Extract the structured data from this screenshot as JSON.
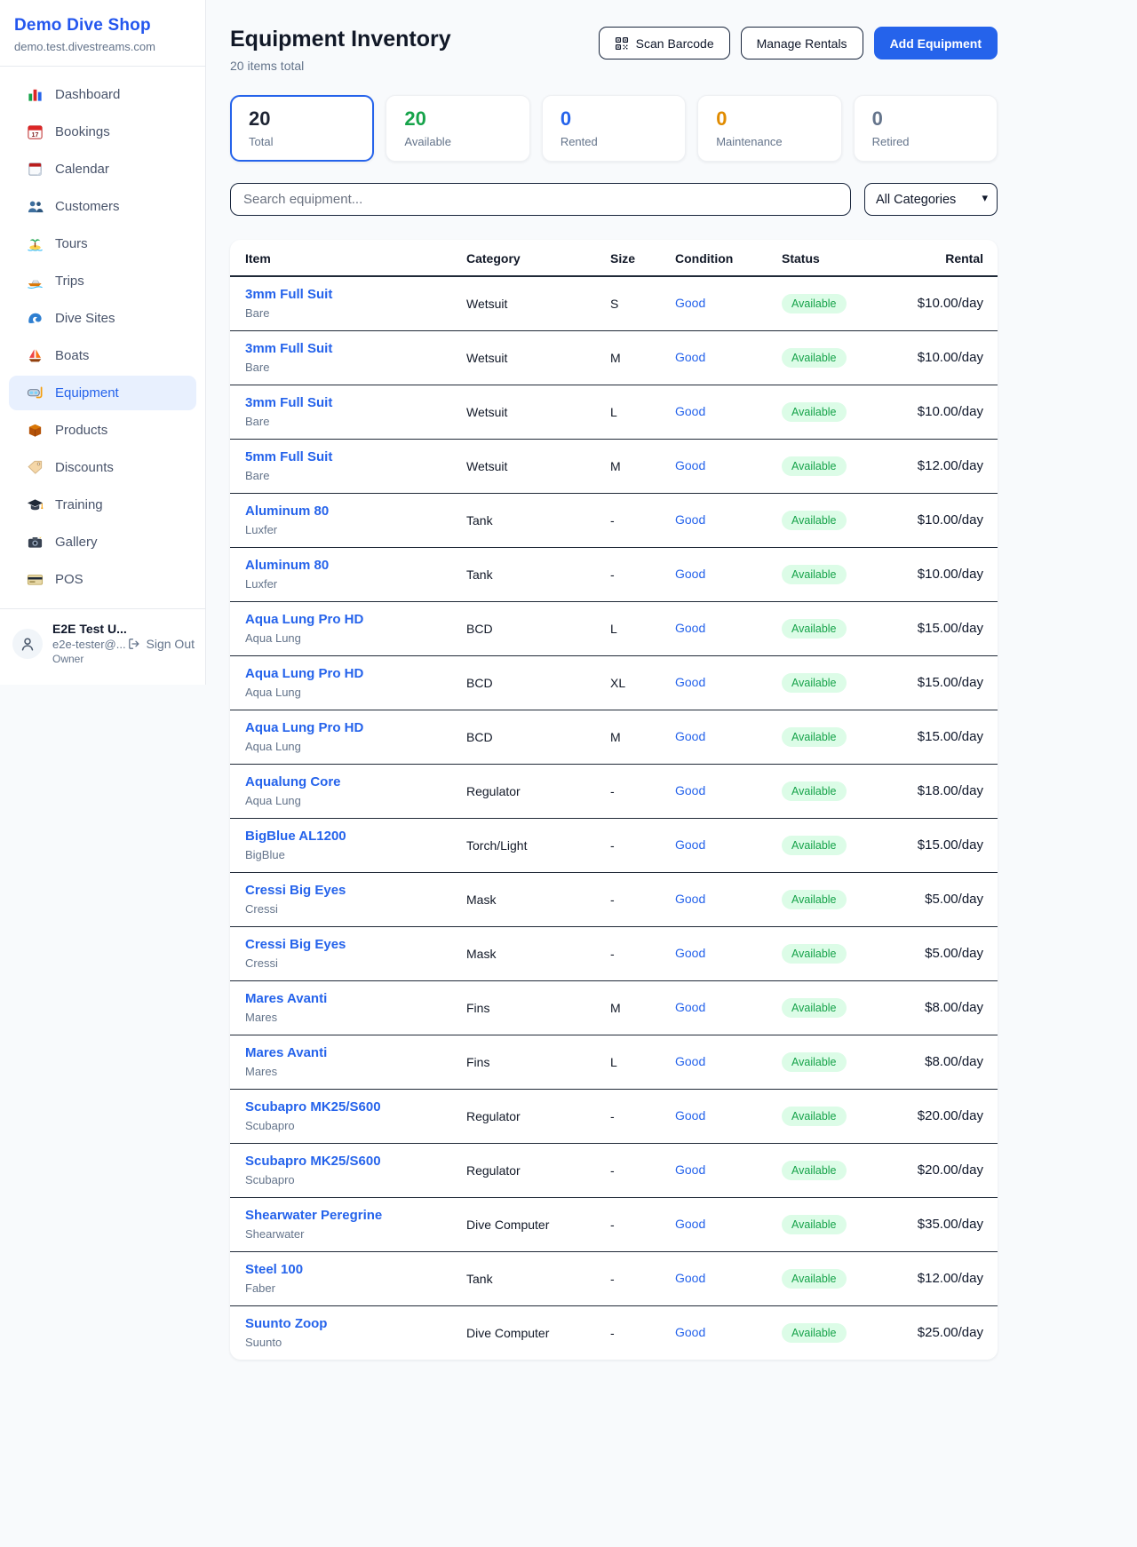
{
  "sidebar": {
    "brand": "Demo Dive Shop",
    "domain": "demo.test.divestreams.com",
    "items": [
      {
        "label": "Dashboard",
        "icon": "dashboard-chart-icon",
        "active": false
      },
      {
        "label": "Bookings",
        "icon": "bookings-calendar-icon",
        "active": false
      },
      {
        "label": "Calendar",
        "icon": "calendar-icon",
        "active": false
      },
      {
        "label": "Customers",
        "icon": "customers-icon",
        "active": false
      },
      {
        "label": "Tours",
        "icon": "tours-island-icon",
        "active": false
      },
      {
        "label": "Trips",
        "icon": "trips-boat-icon",
        "active": false
      },
      {
        "label": "Dive Sites",
        "icon": "dive-sites-wave-icon",
        "active": false
      },
      {
        "label": "Boats",
        "icon": "boats-sailboat-icon",
        "active": false
      },
      {
        "label": "Equipment",
        "icon": "equipment-dive-mask-icon",
        "active": true
      },
      {
        "label": "Products",
        "icon": "products-box-icon",
        "active": false
      },
      {
        "label": "Discounts",
        "icon": "discounts-tag-icon",
        "active": false
      },
      {
        "label": "Training",
        "icon": "training-grad-cap-icon",
        "active": false
      },
      {
        "label": "Gallery",
        "icon": "gallery-camera-icon",
        "active": false
      },
      {
        "label": "POS",
        "icon": "pos-credit-card-icon",
        "active": false
      }
    ],
    "user": {
      "name": "E2E Test U...",
      "email": "e2e-tester@...",
      "role": "Owner",
      "sign_out": "Sign Out"
    }
  },
  "header": {
    "title": "Equipment Inventory",
    "subtitle": "20 items total",
    "scan_button": "Scan Barcode",
    "manage_button": "Manage Rentals",
    "add_button": "Add Equipment"
  },
  "stats": [
    {
      "value": "20",
      "label": "Total",
      "color": "#1e2433",
      "selected": true
    },
    {
      "value": "20",
      "label": "Available",
      "color": "#16a34a",
      "selected": false
    },
    {
      "value": "0",
      "label": "Rented",
      "color": "#2563eb",
      "selected": false
    },
    {
      "value": "0",
      "label": "Maintenance",
      "color": "#e08b00",
      "selected": false
    },
    {
      "value": "0",
      "label": "Retired",
      "color": "#64748b",
      "selected": false
    }
  ],
  "filters": {
    "search_placeholder": "Search equipment...",
    "category": "All Categories"
  },
  "table": {
    "columns": [
      "Item",
      "Category",
      "Size",
      "Condition",
      "Status",
      "Rental"
    ],
    "rows": [
      {
        "name": "3mm Full Suit",
        "brand": "Bare",
        "category": "Wetsuit",
        "size": "S",
        "condition": "Good",
        "status": "Available",
        "rental": "$10.00/day"
      },
      {
        "name": "3mm Full Suit",
        "brand": "Bare",
        "category": "Wetsuit",
        "size": "M",
        "condition": "Good",
        "status": "Available",
        "rental": "$10.00/day"
      },
      {
        "name": "3mm Full Suit",
        "brand": "Bare",
        "category": "Wetsuit",
        "size": "L",
        "condition": "Good",
        "status": "Available",
        "rental": "$10.00/day"
      },
      {
        "name": "5mm Full Suit",
        "brand": "Bare",
        "category": "Wetsuit",
        "size": "M",
        "condition": "Good",
        "status": "Available",
        "rental": "$12.00/day"
      },
      {
        "name": "Aluminum 80",
        "brand": "Luxfer",
        "category": "Tank",
        "size": "-",
        "condition": "Good",
        "status": "Available",
        "rental": "$10.00/day"
      },
      {
        "name": "Aluminum 80",
        "brand": "Luxfer",
        "category": "Tank",
        "size": "-",
        "condition": "Good",
        "status": "Available",
        "rental": "$10.00/day"
      },
      {
        "name": "Aqua Lung Pro HD",
        "brand": "Aqua Lung",
        "category": "BCD",
        "size": "L",
        "condition": "Good",
        "status": "Available",
        "rental": "$15.00/day"
      },
      {
        "name": "Aqua Lung Pro HD",
        "brand": "Aqua Lung",
        "category": "BCD",
        "size": "XL",
        "condition": "Good",
        "status": "Available",
        "rental": "$15.00/day"
      },
      {
        "name": "Aqua Lung Pro HD",
        "brand": "Aqua Lung",
        "category": "BCD",
        "size": "M",
        "condition": "Good",
        "status": "Available",
        "rental": "$15.00/day"
      },
      {
        "name": "Aqualung Core",
        "brand": "Aqua Lung",
        "category": "Regulator",
        "size": "-",
        "condition": "Good",
        "status": "Available",
        "rental": "$18.00/day"
      },
      {
        "name": "BigBlue AL1200",
        "brand": "BigBlue",
        "category": "Torch/Light",
        "size": "-",
        "condition": "Good",
        "status": "Available",
        "rental": "$15.00/day"
      },
      {
        "name": "Cressi Big Eyes",
        "brand": "Cressi",
        "category": "Mask",
        "size": "-",
        "condition": "Good",
        "status": "Available",
        "rental": "$5.00/day"
      },
      {
        "name": "Cressi Big Eyes",
        "brand": "Cressi",
        "category": "Mask",
        "size": "-",
        "condition": "Good",
        "status": "Available",
        "rental": "$5.00/day"
      },
      {
        "name": "Mares Avanti",
        "brand": "Mares",
        "category": "Fins",
        "size": "M",
        "condition": "Good",
        "status": "Available",
        "rental": "$8.00/day"
      },
      {
        "name": "Mares Avanti",
        "brand": "Mares",
        "category": "Fins",
        "size": "L",
        "condition": "Good",
        "status": "Available",
        "rental": "$8.00/day"
      },
      {
        "name": "Scubapro MK25/S600",
        "brand": "Scubapro",
        "category": "Regulator",
        "size": "-",
        "condition": "Good",
        "status": "Available",
        "rental": "$20.00/day"
      },
      {
        "name": "Scubapro MK25/S600",
        "brand": "Scubapro",
        "category": "Regulator",
        "size": "-",
        "condition": "Good",
        "status": "Available",
        "rental": "$20.00/day"
      },
      {
        "name": "Shearwater Peregrine",
        "brand": "Shearwater",
        "category": "Dive Computer",
        "size": "-",
        "condition": "Good",
        "status": "Available",
        "rental": "$35.00/day"
      },
      {
        "name": "Steel 100",
        "brand": "Faber",
        "category": "Tank",
        "size": "-",
        "condition": "Good",
        "status": "Available",
        "rental": "$12.00/day"
      },
      {
        "name": "Suunto Zoop",
        "brand": "Suunto",
        "category": "Dive Computer",
        "size": "-",
        "condition": "Good",
        "status": "Available",
        "rental": "$25.00/day"
      }
    ]
  },
  "colors": {
    "brand_blue": "#2563eb",
    "active_nav_bg": "#e8f0fe",
    "badge_bg": "#dcfce7",
    "badge_text": "#16a34a",
    "page_bg": "#f8fafc",
    "row_border": "#1f2937"
  }
}
